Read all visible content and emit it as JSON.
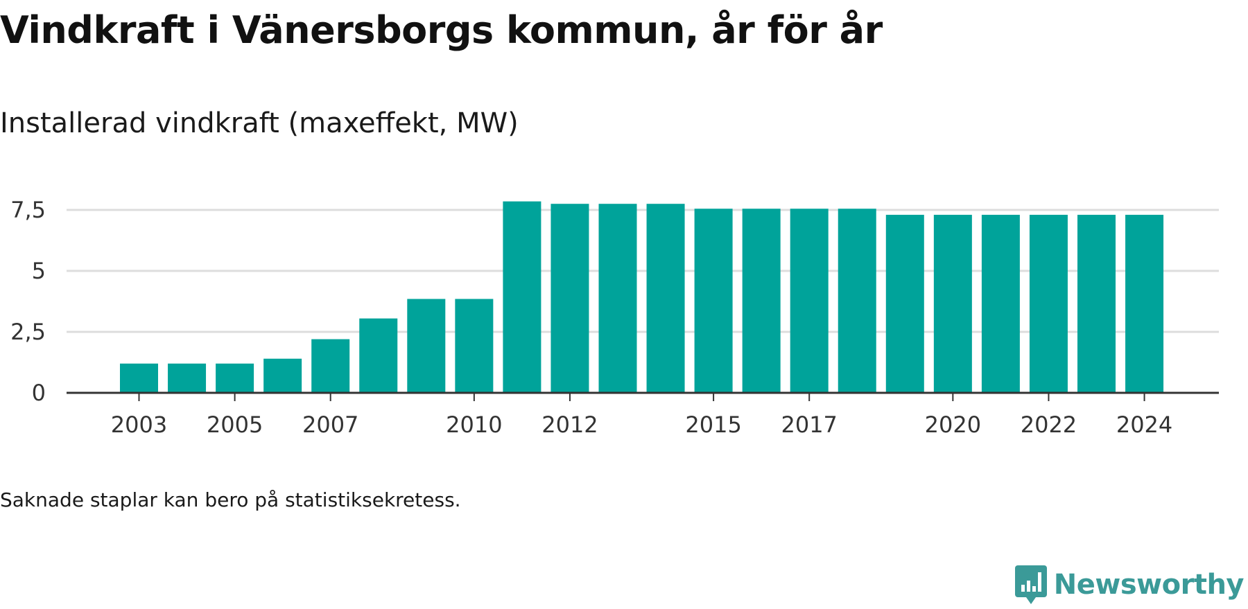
{
  "title": "Vindkraft i Vänersborgs kommun, år för år",
  "subtitle": "Installerad vindkraft (maxeffekt, MW)",
  "footnote": "Saknade staplar kan bero på statistiksekretess.",
  "brand": {
    "name": "Newsworthy",
    "icon": "newsworthy-logo-icon",
    "color": "#3b9a98"
  },
  "chart_data": {
    "type": "bar",
    "categories": [
      "2003",
      "2004",
      "2005",
      "2006",
      "2007",
      "2008",
      "2009",
      "2010",
      "2011",
      "2012",
      "2013",
      "2014",
      "2015",
      "2016",
      "2017",
      "2018",
      "2019",
      "2020",
      "2021",
      "2022",
      "2023",
      "2024"
    ],
    "values": [
      1.2,
      1.2,
      1.2,
      1.4,
      2.2,
      3.05,
      3.85,
      3.85,
      7.85,
      7.75,
      7.75,
      7.75,
      7.55,
      7.55,
      7.55,
      7.55,
      7.3,
      7.3,
      7.3,
      7.3,
      7.3,
      7.3
    ],
    "x_tick_labels": [
      "2003",
      "2005",
      "2007",
      "2010",
      "2012",
      "2015",
      "2017",
      "2020",
      "2022",
      "2024"
    ],
    "y_ticks": [
      0,
      2.5,
      5,
      7.5
    ],
    "y_tick_labels": [
      "0",
      "2,5",
      "5",
      "7,5"
    ],
    "ylim": [
      0,
      7.85
    ],
    "xlabel": "",
    "ylabel": "",
    "grid": true,
    "bar_color": "#00a39a"
  }
}
